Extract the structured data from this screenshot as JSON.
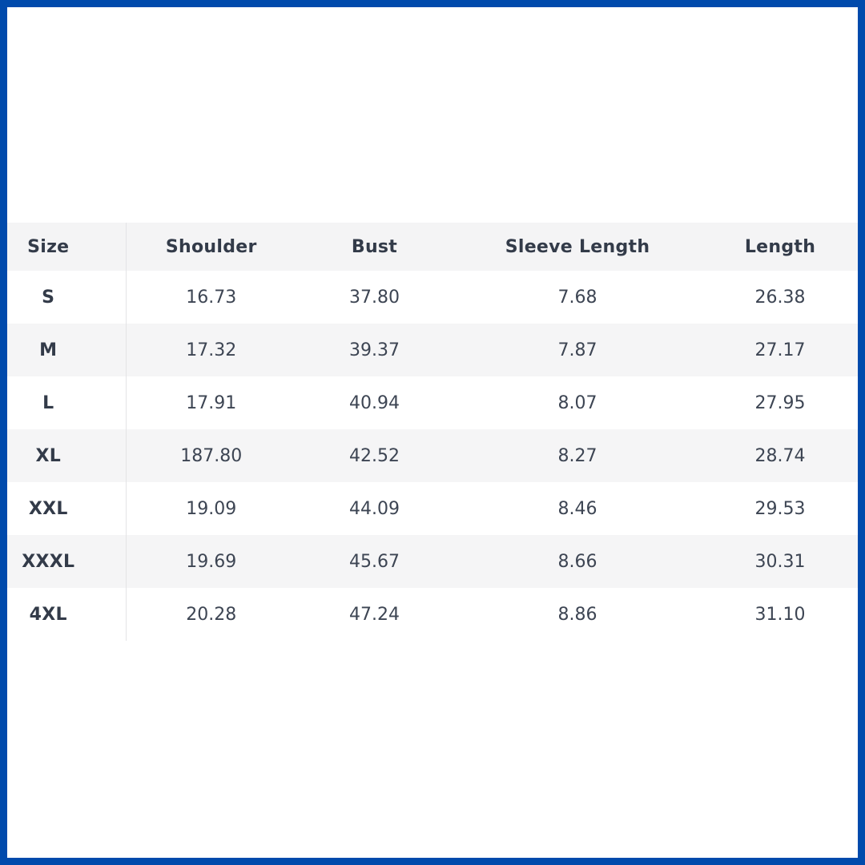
{
  "window": {
    "background": "#ffffff",
    "border_color": "#004aac"
  },
  "colors": {
    "frame_blue": "#004aac",
    "header_bg": "#f4f4f5",
    "stripe_bg": "#f5f5f6",
    "divider": "#e4e4e6",
    "header_text": "#333b49",
    "value_text": "#3d4553"
  },
  "chart_data": {
    "type": "table",
    "columns": [
      "Size",
      "Shoulder",
      "Bust",
      "Sleeve Length",
      "Length"
    ],
    "rows": [
      {
        "size": "S",
        "values": [
          "16.73",
          "37.80",
          "7.68",
          "26.38"
        ]
      },
      {
        "size": "M",
        "values": [
          "17.32",
          "39.37",
          "7.87",
          "27.17"
        ]
      },
      {
        "size": "L",
        "values": [
          "17.91",
          "40.94",
          "8.07",
          "27.95"
        ]
      },
      {
        "size": "XL",
        "values": [
          "187.80",
          "42.52",
          "8.27",
          "28.74"
        ]
      },
      {
        "size": "XXL",
        "values": [
          "19.09",
          "44.09",
          "8.46",
          "29.53"
        ]
      },
      {
        "size": "XXXL",
        "values": [
          "19.69",
          "45.67",
          "8.66",
          "30.31"
        ]
      },
      {
        "size": "4XL",
        "values": [
          "20.28",
          "47.24",
          "8.86",
          "31.10"
        ]
      }
    ],
    "layout": {
      "striped_rows": true,
      "size_column_divider": true
    }
  }
}
